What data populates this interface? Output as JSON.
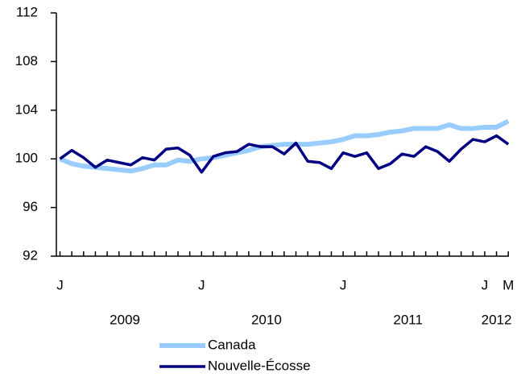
{
  "chart_data": {
    "type": "line",
    "categories": [
      "J",
      null,
      null,
      null,
      null,
      null,
      null,
      null,
      null,
      null,
      null,
      null,
      "J",
      null,
      null,
      null,
      null,
      null,
      null,
      null,
      null,
      null,
      null,
      null,
      "J",
      null,
      null,
      null,
      null,
      null,
      null,
      null,
      null,
      null,
      null,
      null,
      "J",
      null,
      "M"
    ],
    "year_labels": [
      "2009",
      "2010",
      "2011",
      "2012"
    ],
    "ylim": [
      92,
      112
    ],
    "yticks": [
      92,
      96,
      100,
      104,
      108,
      112
    ],
    "grid": false,
    "legend": "bottom",
    "series": [
      {
        "name": "Canada",
        "color": "#99ccff",
        "values": [
          100.0,
          99.6,
          99.4,
          99.3,
          99.2,
          99.1,
          99.0,
          99.2,
          99.5,
          99.5,
          99.9,
          99.8,
          100.0,
          100.1,
          100.3,
          100.5,
          100.7,
          101.0,
          101.1,
          101.2,
          101.2,
          101.2,
          101.3,
          101.4,
          101.6,
          101.9,
          101.9,
          102.0,
          102.2,
          102.3,
          102.5,
          102.5,
          102.5,
          102.8,
          102.5,
          102.5,
          102.6,
          102.6,
          103.1
        ]
      },
      {
        "name": "Nouvelle-Écosse",
        "color": "#000080",
        "values": [
          100.0,
          100.7,
          100.1,
          99.3,
          99.9,
          99.7,
          99.5,
          100.1,
          99.9,
          100.8,
          100.9,
          100.3,
          98.9,
          100.2,
          100.5,
          100.6,
          101.2,
          101.0,
          101.0,
          100.4,
          101.3,
          99.8,
          99.7,
          99.2,
          100.5,
          100.2,
          100.5,
          99.2,
          99.6,
          100.4,
          100.2,
          101.0,
          100.6,
          99.8,
          100.8,
          101.6,
          101.4,
          101.9,
          101.2
        ]
      }
    ]
  }
}
